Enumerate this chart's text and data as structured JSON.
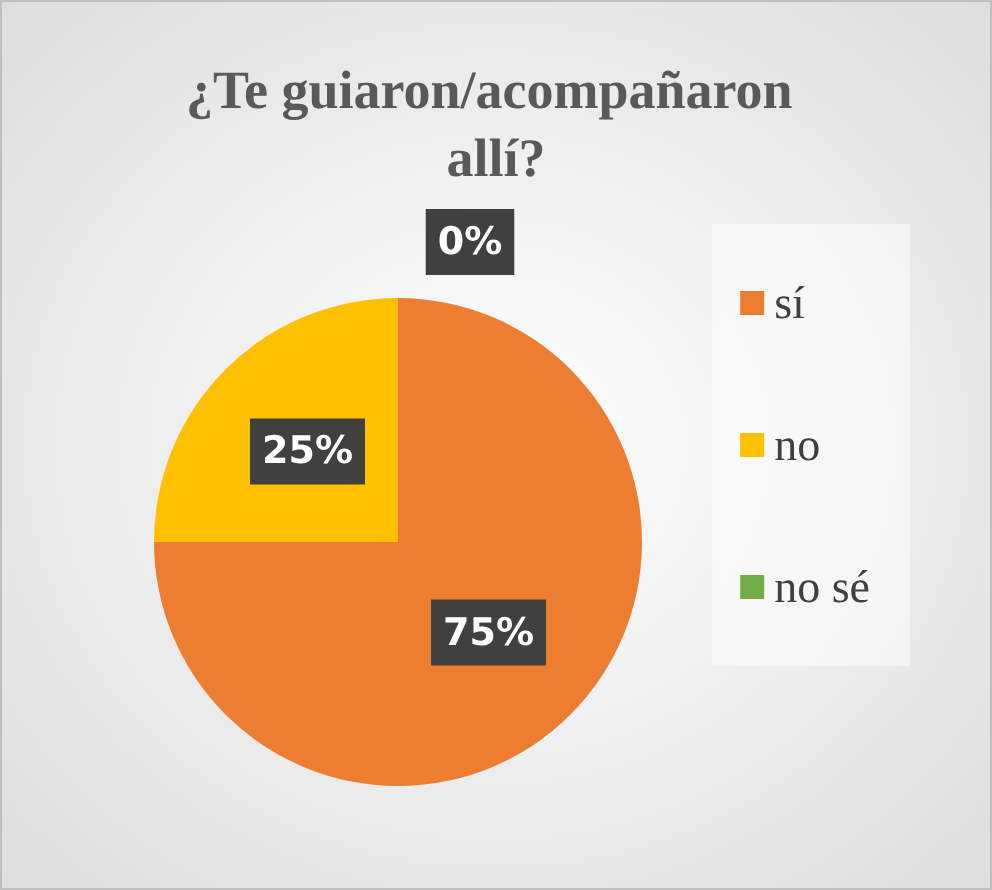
{
  "chart_data": {
    "type": "pie",
    "title": "¿Te guiaron/acompañaron allí?",
    "categories": [
      "sí",
      "no",
      "no sé"
    ],
    "values": [
      75,
      25,
      0
    ],
    "colors": [
      "#ed7d31",
      "#ffc000",
      "#70ad47"
    ],
    "value_labels": [
      "75%",
      "25%",
      "0%"
    ],
    "legend": "right"
  }
}
